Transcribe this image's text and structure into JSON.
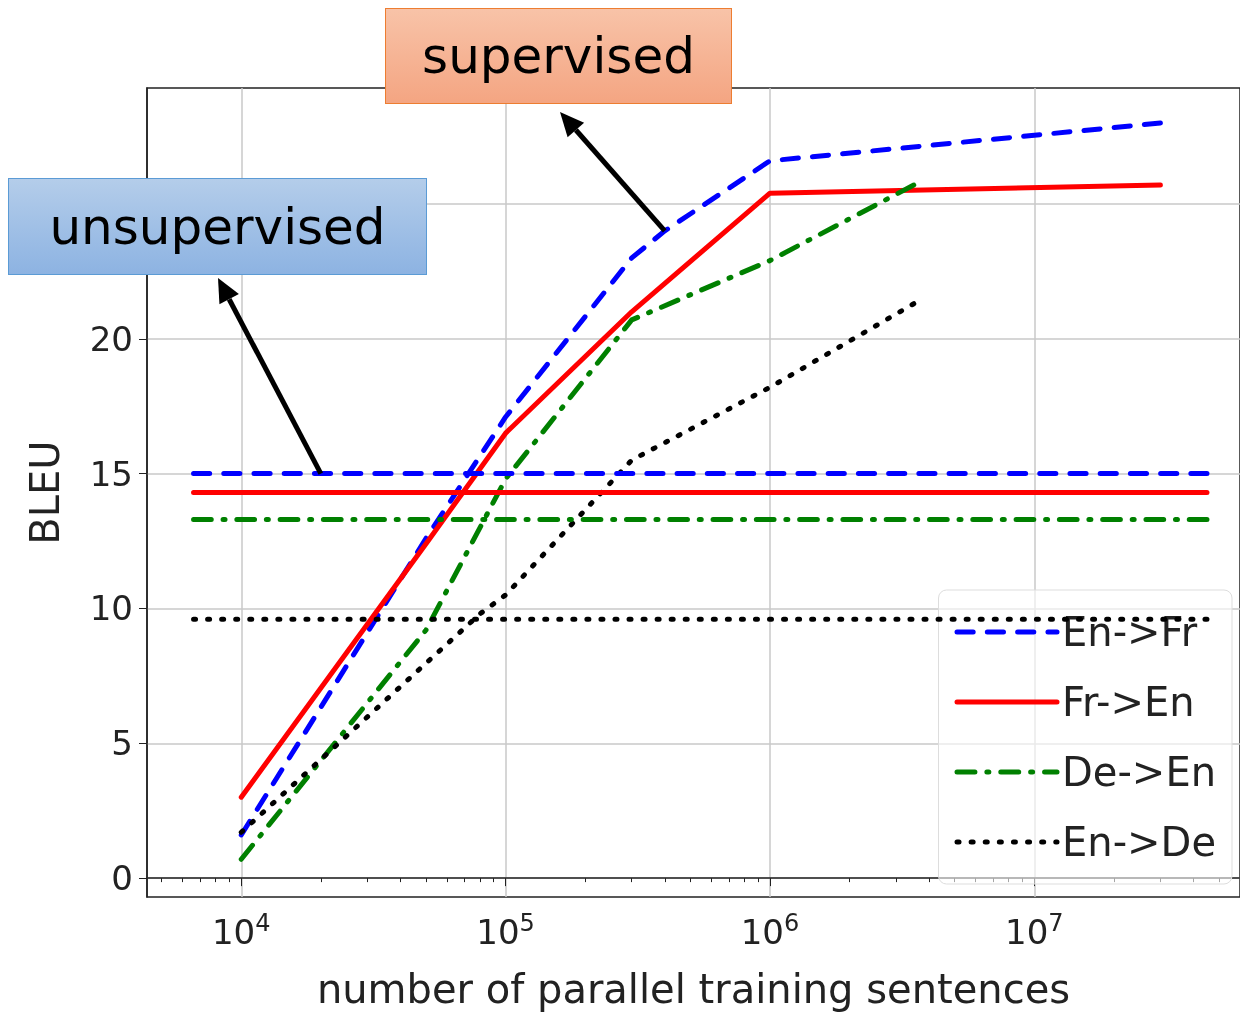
{
  "chart_data": {
    "type": "line",
    "xlabel": "number of parallel training sentences",
    "ylabel": "BLEU",
    "log": "x",
    "xlim": [
      4400,
      60000000
    ],
    "ylim": [
      -0.7,
      29.3
    ],
    "xticks": [
      {
        "value": 10000,
        "label": "10$^{4}$"
      },
      {
        "value": 100000,
        "label": "10$^{5}$"
      },
      {
        "value": 1000000,
        "label": "10$^{6}$"
      },
      {
        "value": 10000000,
        "label": "10$^{7}$"
      }
    ],
    "yticks": [
      0,
      5,
      10,
      15,
      20,
      {
        "value": 25,
        "label": null
      }
    ],
    "grid": true,
    "legend": "bottom right",
    "marker": "none",
    "annotations": [
      {
        "text": "supervised",
        "x": 400000,
        "y": 24.0
      },
      {
        "text": "unsupervised",
        "x": 20000,
        "y": 15.0
      }
    ],
    "series": [
      {
        "name": "En->Fr",
        "color": "#0000ff",
        "line_style": "dashed",
        "x": [
          10000,
          50000,
          100000,
          300000,
          400000,
          1000000,
          30000000
        ],
        "values": [
          1.6,
          12.6,
          17.1,
          23.0,
          24.0,
          26.6,
          28.0
        ]
      },
      {
        "name": "Fr->En",
        "color": "#ff0000",
        "line_style": "solid",
        "x": [
          10000,
          50000,
          100000,
          300000,
          1000000,
          30000000
        ],
        "values": [
          3.0,
          12.4,
          16.5,
          21.0,
          25.4,
          25.7
        ]
      },
      {
        "name": "De->En",
        "color": "#008000",
        "line_style": "dashdot",
        "x": [
          10000,
          50000,
          100000,
          300000,
          1000000,
          3500000
        ],
        "values": [
          0.7,
          9.2,
          14.8,
          20.7,
          22.9,
          25.7
        ]
      },
      {
        "name": "En->De",
        "color": "#000000",
        "line_style": "dotted",
        "x": [
          10000,
          80000,
          100000,
          300000,
          1000000,
          3500000
        ],
        "values": [
          1.7,
          9.8,
          10.5,
          15.5,
          18.2,
          21.3
        ]
      },
      {
        "color": "#0000ff",
        "line_style": "dashed",
        "x": [
          6600,
          45000000
        ],
        "values": [
          15.0,
          15.0
        ]
      },
      {
        "color": "#ff0000",
        "line_style": "solid",
        "x": [
          6600,
          45000000
        ],
        "values": [
          14.3,
          14.3
        ]
      },
      {
        "color": "#008000",
        "line_style": "dashdot",
        "x": [
          6600,
          45000000
        ],
        "values": [
          13.3,
          13.3
        ]
      },
      {
        "color": "#000000",
        "line_style": "dotted",
        "x": [
          6600,
          45000000
        ],
        "values": [
          9.6,
          9.6
        ]
      }
    ]
  }
}
